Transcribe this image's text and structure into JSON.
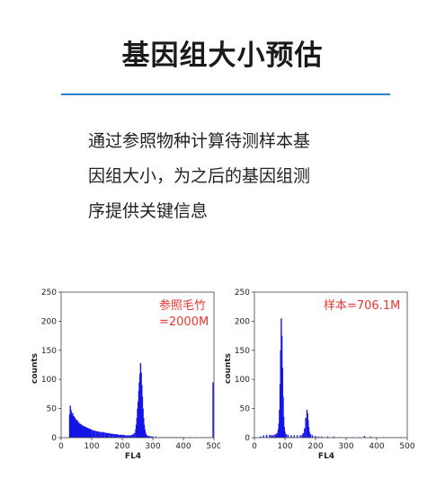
{
  "header": {
    "title": "基因组大小预估"
  },
  "description": {
    "lines": [
      "通过参照物种计算待测样本基",
      "因组大小，为之后的基因组测",
      "序提供关键信息"
    ]
  },
  "colors": {
    "accent": "#2f7fc6",
    "histogram": "#1414e6",
    "annotation": "#e8382f"
  },
  "chart_data": [
    {
      "type": "histogram",
      "annotation": [
        "参照毛竹",
        "=2000M"
      ],
      "xlabel": "FL4",
      "ylabel": "counts",
      "xlim": [
        0,
        500
      ],
      "ylim": [
        0,
        250
      ],
      "xticks": [
        "0",
        "100",
        "200",
        "300",
        "400",
        "500"
      ],
      "yticks": [
        "0",
        "50",
        "100",
        "150",
        "200",
        "250"
      ],
      "bins": [
        [
          28,
          40
        ],
        [
          30,
          55
        ],
        [
          32,
          48
        ],
        [
          34,
          44
        ],
        [
          36,
          38
        ],
        [
          38,
          42
        ],
        [
          40,
          35
        ],
        [
          42,
          37
        ],
        [
          44,
          32
        ],
        [
          46,
          34
        ],
        [
          48,
          30
        ],
        [
          50,
          31
        ],
        [
          52,
          27
        ],
        [
          54,
          29
        ],
        [
          56,
          25
        ],
        [
          58,
          26
        ],
        [
          60,
          23
        ],
        [
          62,
          24
        ],
        [
          64,
          22
        ],
        [
          66,
          23
        ],
        [
          68,
          20
        ],
        [
          70,
          21
        ],
        [
          72,
          19
        ],
        [
          74,
          20
        ],
        [
          76,
          18
        ],
        [
          78,
          19
        ],
        [
          80,
          17
        ],
        [
          82,
          18
        ],
        [
          84,
          16
        ],
        [
          86,
          17
        ],
        [
          88,
          15
        ],
        [
          90,
          16
        ],
        [
          92,
          15
        ],
        [
          94,
          14
        ],
        [
          96,
          15
        ],
        [
          98,
          14
        ],
        [
          100,
          13
        ],
        [
          104,
          13
        ],
        [
          108,
          12
        ],
        [
          112,
          12
        ],
        [
          116,
          11
        ],
        [
          120,
          11
        ],
        [
          124,
          10
        ],
        [
          128,
          10
        ],
        [
          132,
          9
        ],
        [
          136,
          10
        ],
        [
          140,
          9
        ],
        [
          144,
          9
        ],
        [
          148,
          8
        ],
        [
          152,
          8
        ],
        [
          156,
          8
        ],
        [
          160,
          7
        ],
        [
          164,
          7
        ],
        [
          168,
          7
        ],
        [
          172,
          6
        ],
        [
          176,
          6
        ],
        [
          180,
          6
        ],
        [
          184,
          6
        ],
        [
          188,
          5
        ],
        [
          192,
          5
        ],
        [
          196,
          5
        ],
        [
          200,
          5
        ],
        [
          204,
          5
        ],
        [
          208,
          4
        ],
        [
          212,
          4
        ],
        [
          216,
          4
        ],
        [
          220,
          4
        ],
        [
          224,
          4
        ],
        [
          228,
          4
        ],
        [
          232,
          5
        ],
        [
          236,
          6
        ],
        [
          240,
          8
        ],
        [
          244,
          14
        ],
        [
          246,
          22
        ],
        [
          248,
          34
        ],
        [
          250,
          50
        ],
        [
          252,
          62
        ],
        [
          254,
          80
        ],
        [
          256,
          95
        ],
        [
          258,
          110
        ],
        [
          260,
          128
        ],
        [
          262,
          112
        ],
        [
          264,
          90
        ],
        [
          266,
          70
        ],
        [
          268,
          50
        ],
        [
          270,
          34
        ],
        [
          272,
          22
        ],
        [
          274,
          14
        ],
        [
          276,
          9
        ],
        [
          278,
          6
        ],
        [
          280,
          4
        ],
        [
          284,
          3
        ],
        [
          288,
          3
        ],
        [
          292,
          2
        ],
        [
          296,
          2
        ],
        [
          300,
          2
        ],
        [
          310,
          2
        ],
        [
          320,
          1
        ],
        [
          330,
          1
        ],
        [
          340,
          1
        ],
        [
          350,
          1
        ],
        [
          360,
          1
        ],
        [
          370,
          1
        ],
        [
          380,
          1
        ],
        [
          390,
          1
        ],
        [
          400,
          1
        ],
        [
          420,
          1
        ],
        [
          440,
          1
        ],
        [
          460,
          1
        ],
        [
          480,
          1
        ],
        [
          497,
          95
        ]
      ]
    },
    {
      "type": "histogram",
      "annotation": [
        "样本=706.1M"
      ],
      "xlabel": "FL4",
      "ylabel": "counts",
      "xlim": [
        0,
        500
      ],
      "ylim": [
        0,
        250
      ],
      "xticks": [
        "0",
        "100",
        "200",
        "300",
        "400",
        "500"
      ],
      "yticks": [
        "0",
        "50",
        "100",
        "150",
        "200",
        "250"
      ],
      "bins": [
        [
          20,
          2
        ],
        [
          30,
          4
        ],
        [
          40,
          5
        ],
        [
          50,
          5
        ],
        [
          55,
          4
        ],
        [
          60,
          4
        ],
        [
          65,
          5
        ],
        [
          70,
          6
        ],
        [
          74,
          8
        ],
        [
          78,
          14
        ],
        [
          80,
          24
        ],
        [
          82,
          48
        ],
        [
          84,
          92
        ],
        [
          86,
          150
        ],
        [
          88,
          205
        ],
        [
          90,
          175
        ],
        [
          92,
          120
        ],
        [
          94,
          70
        ],
        [
          96,
          36
        ],
        [
          98,
          18
        ],
        [
          100,
          10
        ],
        [
          104,
          6
        ],
        [
          110,
          5
        ],
        [
          120,
          4
        ],
        [
          130,
          4
        ],
        [
          140,
          4
        ],
        [
          150,
          4
        ],
        [
          156,
          5
        ],
        [
          160,
          8
        ],
        [
          164,
          16
        ],
        [
          168,
          34
        ],
        [
          172,
          48
        ],
        [
          174,
          42
        ],
        [
          176,
          30
        ],
        [
          178,
          18
        ],
        [
          180,
          10
        ],
        [
          184,
          6
        ],
        [
          190,
          4
        ],
        [
          200,
          3
        ],
        [
          210,
          2
        ],
        [
          220,
          2
        ],
        [
          240,
          2
        ],
        [
          260,
          2
        ],
        [
          280,
          1
        ],
        [
          300,
          1
        ],
        [
          320,
          1
        ],
        [
          340,
          1
        ],
        [
          360,
          3
        ],
        [
          380,
          2
        ],
        [
          400,
          1
        ],
        [
          420,
          1
        ],
        [
          440,
          1
        ],
        [
          460,
          1
        ],
        [
          480,
          1
        ]
      ]
    }
  ]
}
